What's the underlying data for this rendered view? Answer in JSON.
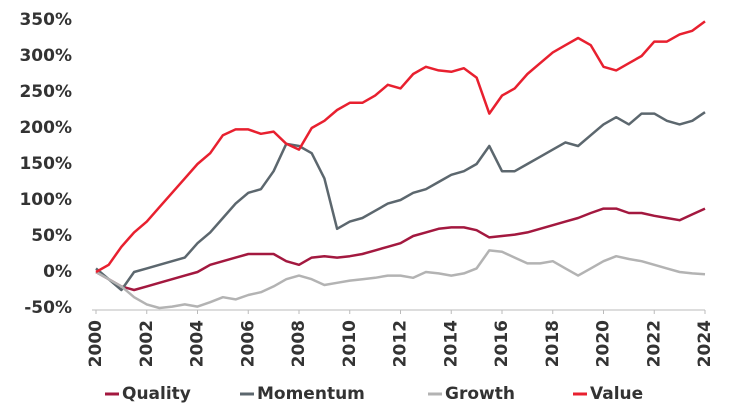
{
  "chart_data": {
    "type": "line",
    "x": [
      2000,
      2000.5,
      2001,
      2001.5,
      2002,
      2002.5,
      2003,
      2003.5,
      2004,
      2004.5,
      2005,
      2005.5,
      2006,
      2006.5,
      2007,
      2007.5,
      2008,
      2008.5,
      2009,
      2009.5,
      2010,
      2010.5,
      2011,
      2011.5,
      2012,
      2012.5,
      2013,
      2013.5,
      2014,
      2014.5,
      2015,
      2015.5,
      2016,
      2016.5,
      2017,
      2017.5,
      2018,
      2018.5,
      2019,
      2019.5,
      2020,
      2020.5,
      2021,
      2021.5,
      2022,
      2022.5,
      2023,
      2023.5,
      2024
    ],
    "series": [
      {
        "name": "Quality",
        "color": "#a3183f",
        "values": [
          0,
          -10,
          -20,
          -25,
          -20,
          -15,
          -10,
          -5,
          0,
          10,
          15,
          20,
          25,
          25,
          25,
          15,
          10,
          20,
          22,
          20,
          22,
          25,
          30,
          35,
          40,
          50,
          55,
          60,
          62,
          62,
          58,
          48,
          50,
          52,
          55,
          60,
          65,
          70,
          75,
          82,
          88,
          88,
          82,
          82,
          78,
          75,
          72,
          80,
          88
        ]
      },
      {
        "name": "Momentum",
        "color": "#5c676e",
        "values": [
          5,
          -10,
          -25,
          0,
          5,
          10,
          15,
          20,
          40,
          55,
          75,
          95,
          110,
          115,
          140,
          178,
          175,
          165,
          130,
          60,
          70,
          75,
          85,
          95,
          100,
          110,
          115,
          125,
          135,
          140,
          150,
          175,
          140,
          140,
          150,
          160,
          170,
          180,
          175,
          190,
          205,
          215,
          205,
          220,
          220,
          210,
          205,
          210,
          222
        ]
      },
      {
        "name": "Growth",
        "color": "#b3b3b3",
        "values": [
          0,
          -10,
          -20,
          -35,
          -45,
          -50,
          -48,
          -45,
          -48,
          -42,
          -35,
          -38,
          -32,
          -28,
          -20,
          -10,
          -5,
          -10,
          -18,
          -15,
          -12,
          -10,
          -8,
          -5,
          -5,
          -8,
          0,
          -2,
          -5,
          -2,
          5,
          30,
          28,
          20,
          12,
          12,
          15,
          5,
          -5,
          5,
          15,
          22,
          18,
          15,
          10,
          5,
          0,
          -2,
          -3
        ]
      },
      {
        "name": "Value",
        "color": "#e8202f",
        "values": [
          0,
          10,
          35,
          55,
          70,
          90,
          110,
          130,
          150,
          165,
          190,
          198,
          198,
          192,
          195,
          178,
          170,
          200,
          210,
          225,
          235,
          235,
          245,
          260,
          255,
          275,
          285,
          280,
          278,
          283,
          270,
          220,
          245,
          255,
          275,
          290,
          305,
          315,
          325,
          315,
          285,
          280,
          290,
          300,
          320,
          320,
          330,
          335,
          348
        ]
      }
    ],
    "xlim": [
      2000,
      2024
    ],
    "xticks": [
      2000,
      2002,
      2004,
      2006,
      2008,
      2010,
      2012,
      2014,
      2016,
      2018,
      2020,
      2022,
      2024
    ],
    "ylim": [
      -50,
      350
    ],
    "yticks": [
      {
        "value": -50,
        "label": "-50%"
      },
      {
        "value": 0,
        "label": "0%"
      },
      {
        "value": 50,
        "label": "50%"
      },
      {
        "value": 100,
        "label": "100%"
      },
      {
        "value": 150,
        "label": "150%"
      },
      {
        "value": 200,
        "label": "200%"
      },
      {
        "value": 250,
        "label": "250%"
      },
      {
        "value": 300,
        "label": "300%"
      },
      {
        "value": 350,
        "label": "350%"
      }
    ],
    "grid": false,
    "legend": "bottom"
  }
}
